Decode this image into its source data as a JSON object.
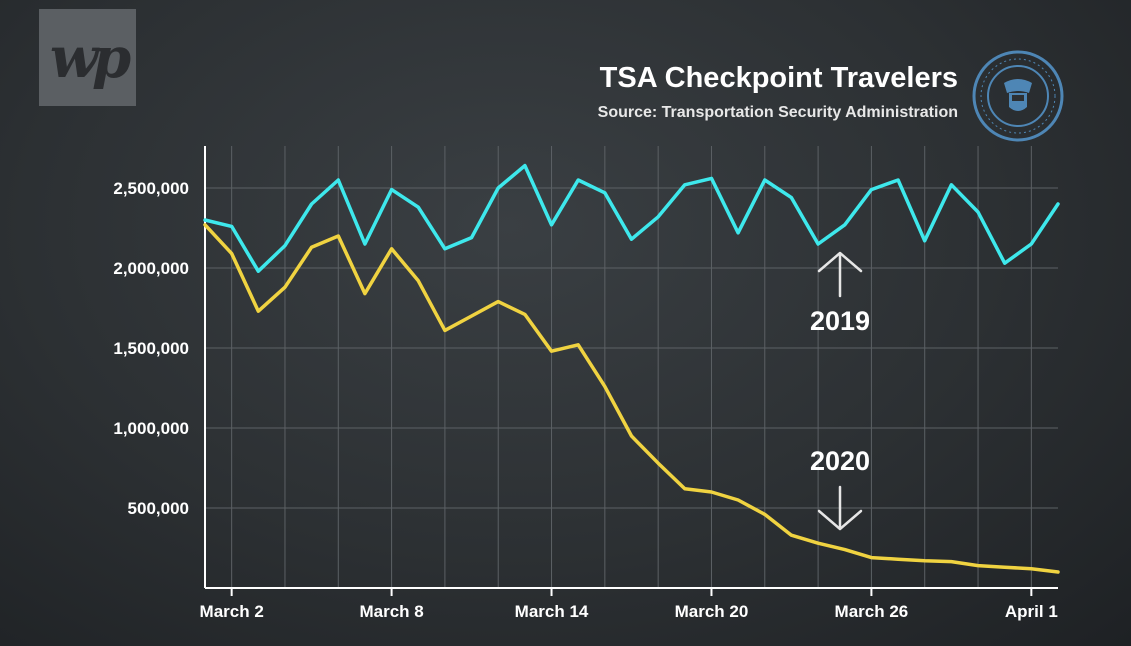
{
  "branding": {
    "logo_text": "wp",
    "seal_name": "dhs-seal"
  },
  "header": {
    "title": "TSA Checkpoint Travelers",
    "subtitle": "Source: Transportation Security Administration"
  },
  "colors": {
    "series_2019": "#3ee8ec",
    "series_2020": "#f0d341",
    "grid": "#5c6165",
    "axis_text": "#ffffff",
    "seal": "#4e86b5"
  },
  "annotations": {
    "label_2019": "2019",
    "label_2020": "2020"
  },
  "chart_data": {
    "type": "line",
    "title": "TSA Checkpoint Travelers",
    "subtitle": "Source: Transportation Security Administration",
    "xlabel": "",
    "ylabel": "",
    "ylim": [
      0,
      2750000
    ],
    "yticks": [
      500000,
      1000000,
      1500000,
      2000000,
      2500000
    ],
    "ytick_labels": [
      "500,000",
      "1,000,000",
      "1,500,000",
      "2,000,000",
      "2,500,000"
    ],
    "x": [
      "March 1",
      "March 2",
      "March 3",
      "March 4",
      "March 5",
      "March 6",
      "March 7",
      "March 8",
      "March 9",
      "March 10",
      "March 11",
      "March 12",
      "March 13",
      "March 14",
      "March 15",
      "March 16",
      "March 17",
      "March 18",
      "March 19",
      "March 20",
      "March 21",
      "March 22",
      "March 23",
      "March 24",
      "March 25",
      "March 26",
      "March 27",
      "March 28",
      "March 29",
      "March 30",
      "March 31",
      "April 1",
      "April 2"
    ],
    "xtick_labels": [
      {
        "label": "March 2",
        "index": 1
      },
      {
        "label": "March 8",
        "index": 7
      },
      {
        "label": "March 14",
        "index": 13
      },
      {
        "label": "March 20",
        "index": 19
      },
      {
        "label": "March 26",
        "index": 25
      },
      {
        "label": "April 1",
        "index": 31
      }
    ],
    "grid": true,
    "series": [
      {
        "name": "2019",
        "values": [
          2300000,
          2260000,
          1980000,
          2140000,
          2400000,
          2550000,
          2150000,
          2490000,
          2380000,
          2120000,
          2190000,
          2500000,
          2640000,
          2270000,
          2550000,
          2470000,
          2180000,
          2320000,
          2520000,
          2560000,
          2220000,
          2550000,
          2440000,
          2150000,
          2270000,
          2490000,
          2550000,
          2170000,
          2520000,
          2350000,
          2030000,
          2150000,
          2400000
        ]
      },
      {
        "name": "2020",
        "values": [
          2270000,
          2090000,
          1730000,
          1880000,
          2130000,
          2200000,
          1840000,
          2120000,
          1920000,
          1610000,
          1700000,
          1790000,
          1710000,
          1480000,
          1520000,
          1260000,
          950000,
          780000,
          620000,
          600000,
          550000,
          460000,
          330000,
          280000,
          240000,
          190000,
          180000,
          170000,
          165000,
          140000,
          130000,
          120000,
          100000
        ]
      }
    ]
  }
}
